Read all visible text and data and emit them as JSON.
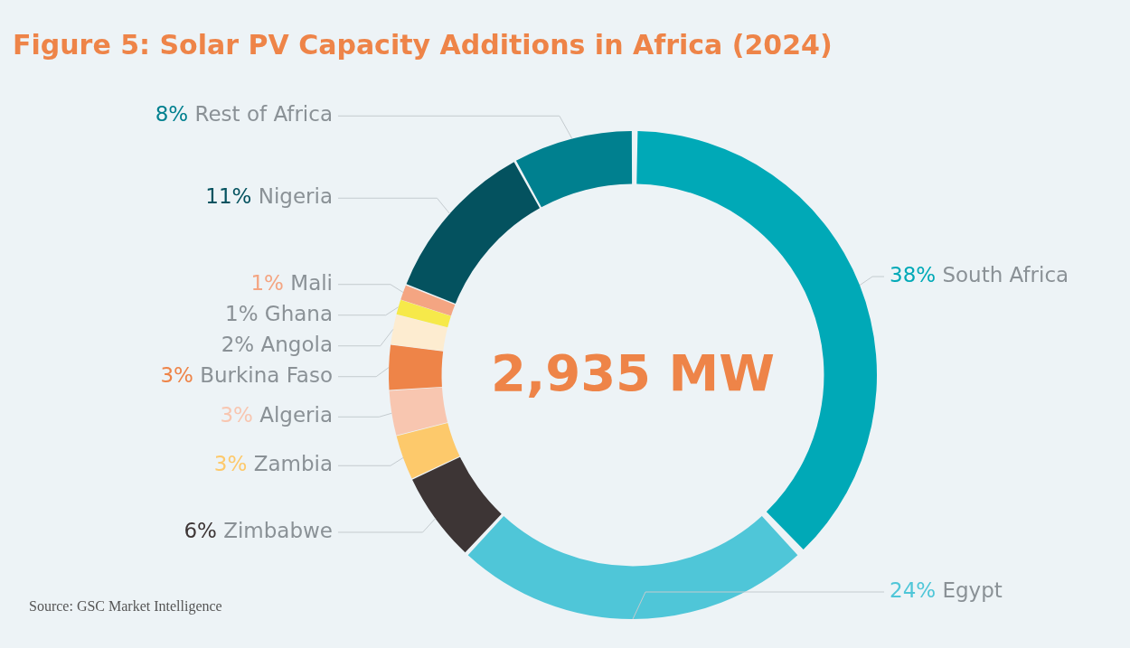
{
  "chart_data": {
    "type": "donut",
    "title": "Figure 5: Solar PV Capacity Additions in Africa (2024)",
    "categories": [
      "South Africa",
      "Egypt",
      "Zimbabwe",
      "Zambia",
      "Algeria",
      "Burkina Faso",
      "Angola",
      "Ghana",
      "Mali",
      "Nigeria",
      "Rest of Africa"
    ],
    "values": [
      38,
      24,
      6,
      3,
      3,
      3,
      2,
      1,
      1,
      11,
      8
    ],
    "value_labels": [
      "38%",
      "24%",
      "6%",
      "3%",
      "3%",
      "3%",
      "2%",
      "1%",
      "1%",
      "11%",
      "8%"
    ],
    "colors": [
      "#00a9b7",
      "#4fc6d8",
      "#3d3535",
      "#fdc96b",
      "#f8c6b0",
      "#ee8448",
      "#fdecd0",
      "#f6e94a",
      "#f4a582",
      "#04525f",
      "#00808f"
    ],
    "annotations": [
      "2,935 MW",
      "Source: GSC Market Intelligence"
    ],
    "legend": false
  }
}
